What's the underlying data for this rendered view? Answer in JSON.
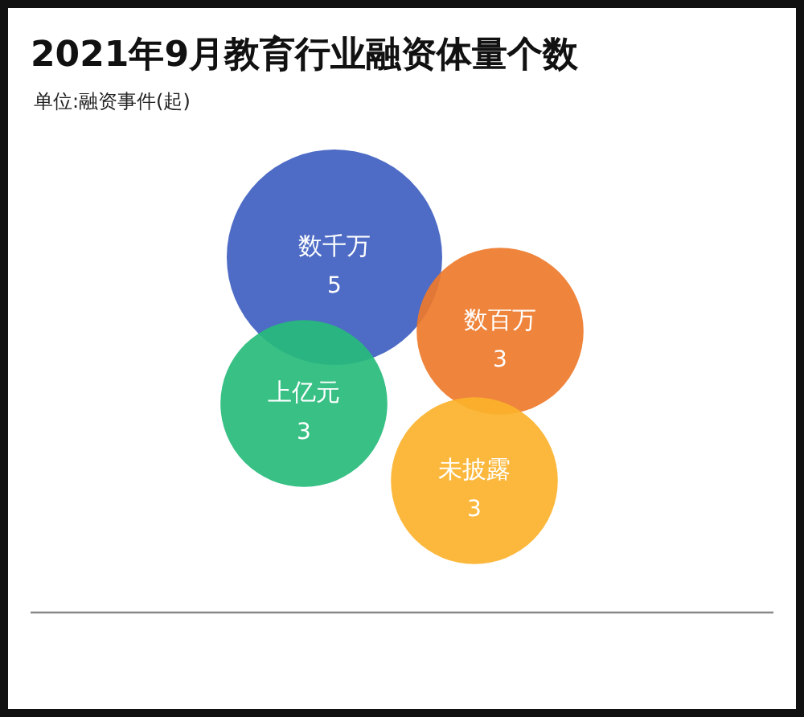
{
  "chart_data": {
    "type": "other",
    "title": "2021年9月教育行业融资体量个数",
    "subtitle": "单位:融资事件(起)",
    "categories": [
      "数千万",
      "数百万",
      "上亿元",
      "未披露"
    ],
    "values": [
      5,
      3,
      3,
      3
    ],
    "colors": [
      "#3f5fc0",
      "#ee7a2b",
      "#27bb7b",
      "#fbb22b"
    ],
    "data_labels": true
  }
}
